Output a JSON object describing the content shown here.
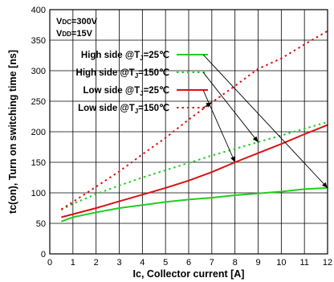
{
  "chart_data": {
    "type": "line",
    "title": "",
    "xlabel": "Ic, Collector current [A]",
    "ylabel": "tc(on), Turn on switching time [ns]",
    "xlim": [
      0,
      12
    ],
    "ylim": [
      0,
      400
    ],
    "xticks": [
      0,
      1,
      2,
      3,
      4,
      5,
      6,
      7,
      8,
      9,
      10,
      11,
      12
    ],
    "yticks": [
      0,
      50,
      100,
      150,
      200,
      250,
      300,
      350,
      400
    ],
    "grid": true,
    "legend_position": "top-left",
    "annotations": [
      {
        "main": "V",
        "sub": "DC",
        "rest": "=300V"
      },
      {
        "main": "V",
        "sub": "DD",
        "rest": "=15V"
      }
    ],
    "series": [
      {
        "name": "High side @TJ=25℃",
        "legend": {
          "before": "High side @T",
          "sub": "J",
          "after": "=25℃"
        },
        "color": "#22cc22",
        "dash": "solid",
        "x": [
          0.5,
          1,
          2,
          3,
          4,
          5,
          6,
          7,
          8,
          9,
          10,
          11,
          12
        ],
        "y": [
          53,
          60,
          68,
          75,
          80,
          85,
          89,
          92,
          96,
          99,
          102,
          106,
          108
        ]
      },
      {
        "name": "High side @TJ=150℃",
        "legend": {
          "before": "High side @T",
          "sub": "J",
          "after": "=150℃"
        },
        "color": "#22cc22",
        "dash": "dotted",
        "x": [
          0.5,
          1,
          2,
          3,
          4,
          5,
          6,
          7,
          8,
          9,
          10,
          11,
          12
        ],
        "y": [
          72,
          82,
          98,
          112,
          125,
          137,
          149,
          161,
          172,
          183,
          194,
          205,
          216
        ]
      },
      {
        "name": "Low side @TJ=25℃",
        "legend": {
          "before": "Low side @T",
          "sub": "J",
          "after": "=25℃"
        },
        "color": "#dd1111",
        "dash": "solid",
        "x": [
          0.5,
          1,
          2,
          3,
          4,
          5,
          6,
          7,
          8,
          9,
          10,
          11,
          12
        ],
        "y": [
          60,
          65,
          75,
          86,
          97,
          108,
          120,
          134,
          150,
          165,
          180,
          196,
          211
        ]
      },
      {
        "name": "Low side @TJ=150℃",
        "legend": {
          "before": "Low side @T",
          "sub": "J",
          "after": "=150℃"
        },
        "color": "#dd1111",
        "dash": "dotted",
        "x": [
          0.5,
          1,
          2,
          3,
          4,
          5,
          6,
          7,
          8,
          9,
          10,
          11,
          12
        ],
        "y": [
          73,
          85,
          110,
          135,
          163,
          190,
          220,
          248,
          275,
          303,
          320,
          343,
          365
        ]
      }
    ],
    "pointers": [
      {
        "series": 0,
        "x": 12,
        "y": 108
      },
      {
        "series": 1,
        "x": 9,
        "y": 183
      },
      {
        "series": 2,
        "x": 8,
        "y": 150
      },
      {
        "series": 3,
        "x": 7,
        "y": 248
      }
    ]
  }
}
